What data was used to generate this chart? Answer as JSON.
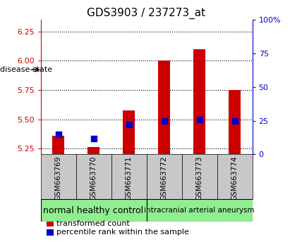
{
  "title": "GDS3903 / 237273_at",
  "samples": [
    "GSM663769",
    "GSM663770",
    "GSM663771",
    "GSM663772",
    "GSM663773",
    "GSM663774"
  ],
  "transformed_count": [
    5.36,
    5.265,
    5.575,
    6.0,
    6.1,
    5.75
  ],
  "percentile_rank": [
    15,
    12,
    22,
    25,
    26,
    25
  ],
  "ylim_left": [
    5.2,
    6.35
  ],
  "ylim_right": [
    0,
    100
  ],
  "yticks_left": [
    5.25,
    5.5,
    5.75,
    6.0,
    6.25
  ],
  "yticks_right": [
    0,
    25,
    50,
    75,
    100
  ],
  "bar_color": "#cc0000",
  "dot_color": "#0000cc",
  "bar_width": 0.35,
  "dot_size": 28,
  "group_labels": [
    "normal healthy control",
    "intracranial arterial aneurysm"
  ],
  "group_colors": [
    "#90ee90",
    "#90ee90"
  ],
  "group_fontsize": [
    9,
    7.5
  ],
  "col_bg_color": "#c8c8c8",
  "plot_bg_color": "#ffffff",
  "legend_transformed_label": "transformed count",
  "legend_percentile_label": "percentile rank within the sample",
  "disease_state_label": "disease state",
  "left_axis_color": "#cc0000",
  "right_axis_color": "#0000cc",
  "title_fontsize": 11,
  "tick_fontsize": 7.5,
  "legend_fontsize": 8,
  "ytick_fontsize": 8
}
